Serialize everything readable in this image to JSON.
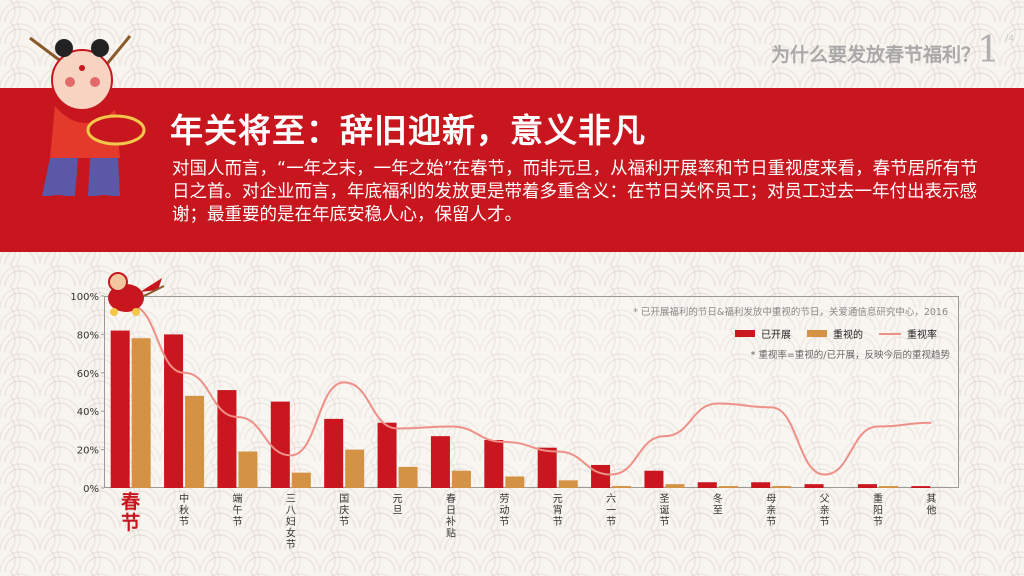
{
  "header": {
    "title": "为什么要发放春节福利？",
    "page": "1",
    "total": "/4"
  },
  "banner": {
    "title": "年关将至：辞旧迎新，意义非凡",
    "text": "对国人而言，“一年之末，一年之始”在春节，而非元旦，从福利开展率和节日重视度来看，春节居所有节日之首。对企业而言，年底福利的发放更是带着多重含义：在节日关怀员工；对员工过去一年付出表示感谢；最重要的是在年底安稳人心，保留人才。"
  },
  "chart_notes": {
    "source": "* 已开展福利的节日&福利发放中重视的节日，关爱通信息研究中心，2016",
    "formula": "* 重视率=重视的/已开展，反映今后的重视趋势"
  },
  "colors": {
    "banner": "#c8161e",
    "bar_conducted": "#c9161f",
    "bar_valued": "#d49245",
    "line_rate": "#ee9088"
  },
  "chart_data": {
    "type": "bar",
    "categories": [
      "春节",
      "中秋节",
      "端午节",
      "三八妇女节",
      "国庆节",
      "元旦",
      "春日补贴",
      "劳动节",
      "元宵节",
      "六一节",
      "圣诞节",
      "冬至",
      "母亲节",
      "父亲节",
      "重阳节",
      "其他"
    ],
    "series": [
      {
        "name": "已开展",
        "type": "bar",
        "values": [
          82,
          80,
          51,
          45,
          36,
          34,
          27,
          25,
          21,
          12,
          9,
          3,
          3,
          2,
          2,
          1
        ]
      },
      {
        "name": "重视的",
        "type": "bar",
        "values": [
          78,
          48,
          19,
          8,
          20,
          11,
          9,
          6,
          4,
          1,
          2,
          1,
          1,
          0,
          1,
          0
        ]
      },
      {
        "name": "重视率",
        "type": "line",
        "values": [
          95,
          60,
          37,
          17,
          55,
          31,
          32,
          24,
          19,
          7,
          27,
          44,
          42,
          7,
          32,
          34
        ]
      }
    ],
    "yticks": [
      "0%",
      "20%",
      "40%",
      "60%",
      "80%",
      "100%"
    ],
    "ylim": [
      0,
      100
    ],
    "legend_position": "top-right"
  }
}
